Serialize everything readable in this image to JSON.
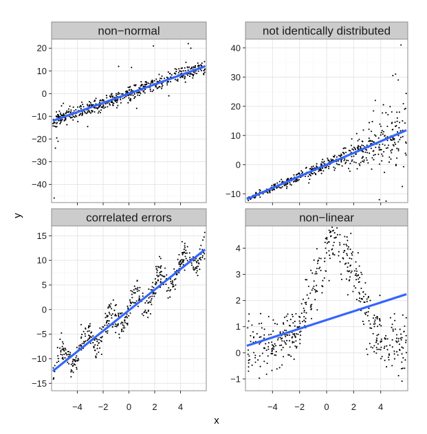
{
  "figure": {
    "xlabel": "x",
    "ylabel": "y"
  },
  "colors": {
    "panel_background": "#ffffff",
    "grid_major": "#e6e6e6",
    "grid_minor": "#f3f3f3",
    "panel_border": "#8c8c8c",
    "strip_fill": "#cccccc",
    "points": "#000000",
    "fit_line": "#3366ff"
  },
  "chart_data": [
    {
      "type": "scatter",
      "title": "non−normal",
      "xlim": [
        -6,
        6
      ],
      "ylim": [
        -48,
        24
      ],
      "xticks": [
        -4,
        -2,
        0,
        2,
        4
      ],
      "xtick_labels": [
        "",
        "",
        "",
        "",
        ""
      ],
      "yticks": [
        20,
        10,
        0,
        -10,
        -20,
        -30,
        -40
      ],
      "ytick_labels": [
        "20",
        "10",
        "0",
        "−10",
        "−20",
        "−30",
        "−40"
      ],
      "grid": true,
      "fit_line": {
        "x": [
          -5.9,
          5.9
        ],
        "y": [
          -12.0,
          12.0
        ]
      },
      "points_seed": 11,
      "points_model": {
        "kind": "linear",
        "slope": 2.03,
        "intercept": 0.0,
        "noise": 1.7
      },
      "outliers": [
        {
          "x": -5.8,
          "y": -46.0
        },
        {
          "x": -5.7,
          "y": -24.0
        },
        {
          "x": -5.5,
          "y": -21.0
        },
        {
          "x": -5.6,
          "y": -19.5
        },
        {
          "x": 1.9,
          "y": 21.0
        },
        {
          "x": 4.6,
          "y": 22.0
        },
        {
          "x": 4.8,
          "y": 20.0
        },
        {
          "x": -0.8,
          "y": 12.0
        },
        {
          "x": 0.2,
          "y": 11.5
        },
        {
          "x": 0.6,
          "y": -6.5
        },
        {
          "x": -3.2,
          "y": -14.5
        },
        {
          "x": 3.1,
          "y": -1.0
        }
      ]
    },
    {
      "type": "scatter",
      "title": "not identically distributed",
      "xlim": [
        -6,
        6
      ],
      "ylim": [
        -13,
        43
      ],
      "xticks": [
        -4,
        -2,
        0,
        2,
        4
      ],
      "xtick_labels": [
        "",
        "",
        "",
        "",
        ""
      ],
      "yticks": [
        40,
        30,
        20,
        10,
        0,
        -10
      ],
      "ytick_labels": [
        "40",
        "30",
        "20",
        "10",
        "0",
        "−10"
      ],
      "grid": true,
      "fit_line": {
        "x": [
          -5.9,
          5.9
        ],
        "y": [
          -11.8,
          11.8
        ]
      },
      "points_seed": 23,
      "points_model": {
        "kind": "heteroscedastic",
        "slope": 2.0,
        "intercept": 0.0,
        "noise_base": 0.3,
        "noise_growth": 0.6
      },
      "outliers": [
        {
          "x": 5.5,
          "y": 41.0
        },
        {
          "x": 5.1,
          "y": 31.0
        },
        {
          "x": 5.3,
          "y": 29.0
        },
        {
          "x": 4.9,
          "y": 30.5
        },
        {
          "x": 3.6,
          "y": 22.0
        },
        {
          "x": 4.2,
          "y": 20.5
        },
        {
          "x": 3.9,
          "y": -12.0
        },
        {
          "x": 4.4,
          "y": -12.5
        },
        {
          "x": 5.6,
          "y": -7.5
        }
      ]
    },
    {
      "type": "scatter",
      "title": "correlated errors",
      "xlim": [
        -6,
        6
      ],
      "ylim": [
        -16.5,
        17
      ],
      "xticks": [
        -4,
        -2,
        0,
        2,
        4
      ],
      "xtick_labels": [
        "−4",
        "−2",
        "0",
        "2",
        "4"
      ],
      "yticks": [
        15,
        10,
        5,
        0,
        -5,
        -10,
        -15
      ],
      "ytick_labels": [
        "15",
        "10",
        "5",
        "0",
        "−5",
        "−10",
        "−15"
      ],
      "grid": true,
      "fit_line": {
        "x": [
          -5.9,
          5.9
        ],
        "y": [
          -12.5,
          12.2
        ]
      },
      "points_seed": 37,
      "points_model": {
        "kind": "correlated",
        "slope": 2.08,
        "intercept": 0.0,
        "wave_amp": 2.2,
        "wave_period": 1.9,
        "noise": 1.3
      },
      "outliers": []
    },
    {
      "type": "scatter",
      "title": "non−linear",
      "xlim": [
        -6,
        6
      ],
      "ylim": [
        -1.45,
        4.85
      ],
      "xticks": [
        -4,
        -2,
        0,
        2,
        4
      ],
      "xtick_labels": [
        "−4",
        "−2",
        "0",
        "2",
        "4"
      ],
      "yticks": [
        4,
        3,
        2,
        1,
        0,
        -1
      ],
      "ytick_labels": [
        "4",
        "3",
        "2",
        "1",
        "0",
        "−1"
      ],
      "grid": true,
      "fit_line": {
        "x": [
          -5.9,
          5.9
        ],
        "y": [
          0.27,
          2.24
        ]
      },
      "points_seed": 53,
      "points_model": {
        "kind": "bump",
        "center": 0.7,
        "height": 4.0,
        "width": 1.5,
        "tail_level": 0.3,
        "noise": 0.55
      },
      "outliers": []
    }
  ]
}
